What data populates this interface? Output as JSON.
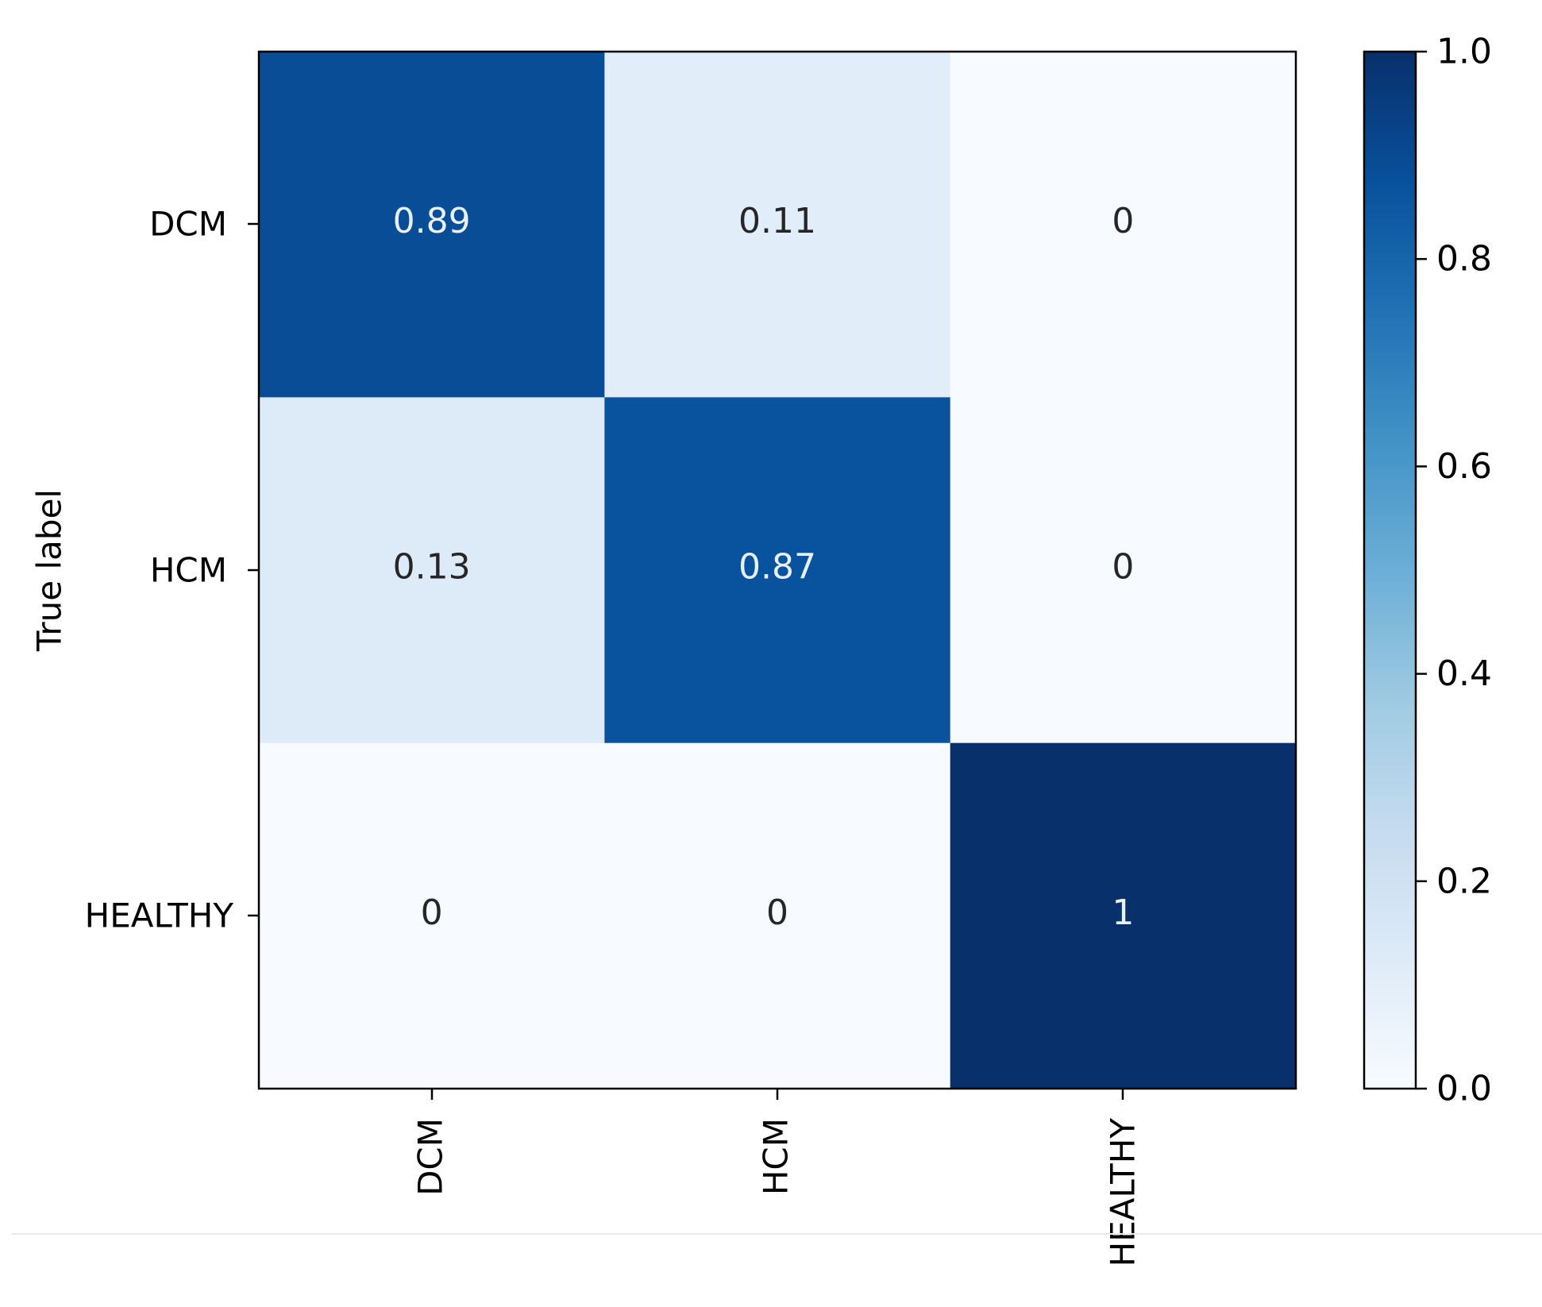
{
  "chart_data": {
    "type": "heatmap",
    "title": "",
    "xlabel": "",
    "ylabel": "True label",
    "row_labels": [
      "DCM",
      "HCM",
      "HEALTHY"
    ],
    "col_labels": [
      "DCM",
      "HCM",
      "HEALTHY"
    ],
    "values": [
      [
        0.89,
        0.11,
        0
      ],
      [
        0.13,
        0.87,
        0
      ],
      [
        0,
        0,
        1
      ]
    ],
    "cell_labels": [
      [
        "0.89",
        "0.11",
        "0"
      ],
      [
        "0.13",
        "0.87",
        "0"
      ],
      [
        "0",
        "0",
        "1"
      ]
    ],
    "colorbar": {
      "range": [
        0.0,
        1.0
      ],
      "ticks": [
        0.0,
        0.2,
        0.4,
        0.6,
        0.8,
        1.0
      ],
      "tick_labels": [
        "0.0",
        "0.2",
        "0.4",
        "0.6",
        "0.8",
        "1.0"
      ],
      "colormap": "Blues"
    },
    "colors": {
      "text_dark": "#262626",
      "text_light": "#e8f1fa",
      "frame": "#000000"
    }
  }
}
